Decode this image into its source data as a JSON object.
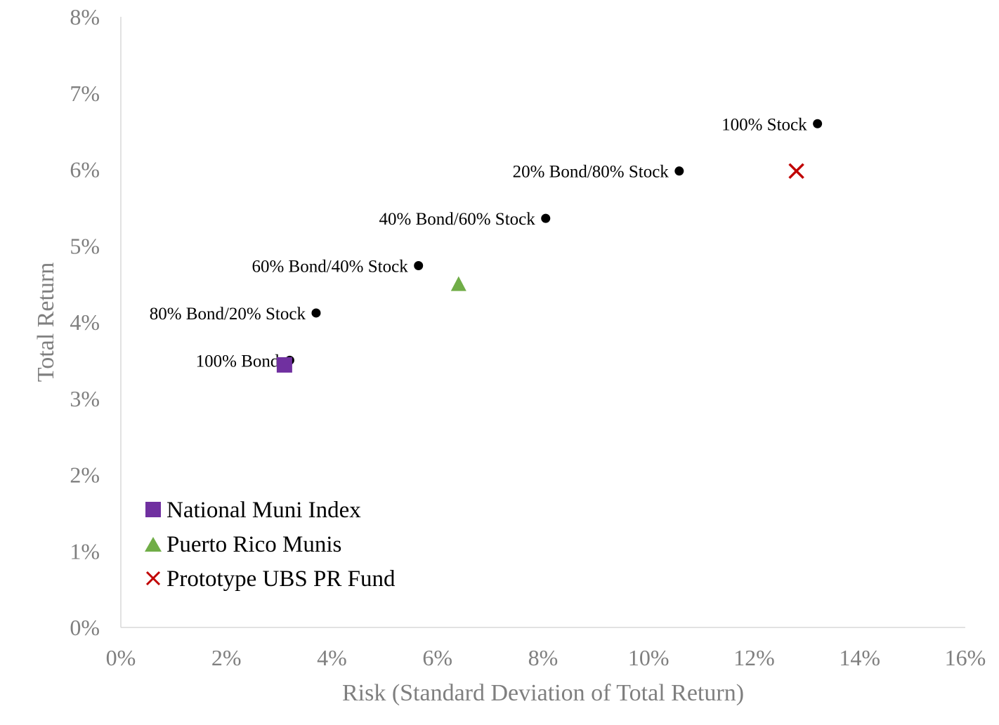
{
  "chart_data": {
    "type": "scatter",
    "xlabel": "Risk (Standard Deviation of Total Return)",
    "ylabel": "Total Return",
    "xlim": [
      0,
      16
    ],
    "ylim": [
      0,
      8
    ],
    "x_ticks": [
      "0%",
      "2%",
      "4%",
      "6%",
      "8%",
      "10%",
      "12%",
      "14%",
      "16%"
    ],
    "y_ticks": [
      "0%",
      "1%",
      "2%",
      "3%",
      "4%",
      "5%",
      "6%",
      "7%",
      "8%"
    ],
    "x_tick_values": [
      0,
      2,
      4,
      6,
      8,
      10,
      12,
      14,
      16
    ],
    "y_tick_values": [
      0,
      1,
      2,
      3,
      4,
      5,
      6,
      7,
      8
    ],
    "grid": false,
    "legend_position": "bottom-left",
    "portfolio_points": [
      {
        "label": "100% Bond",
        "x": 3.2,
        "y": 3.5
      },
      {
        "label": "80% Bond/20% Stock",
        "x": 3.7,
        "y": 4.12
      },
      {
        "label": "60% Bond/40% Stock",
        "x": 5.64,
        "y": 4.74
      },
      {
        "label": "40% Bond/60% Stock",
        "x": 8.05,
        "y": 5.36
      },
      {
        "label": "20% Bond/80% Stock",
        "x": 10.58,
        "y": 5.98
      },
      {
        "label": "100% Stock",
        "x": 13.2,
        "y": 6.6
      }
    ],
    "series": [
      {
        "name": "National Muni Index",
        "marker": "square",
        "color": "#7030a0",
        "x": [
          3.1
        ],
        "y": [
          3.44
        ]
      },
      {
        "name": "Puerto Rico Munis",
        "marker": "triangle",
        "color": "#70ad47",
        "x": [
          6.4
        ],
        "y": [
          4.5
        ]
      },
      {
        "name": "Prototype UBS PR Fund",
        "marker": "x",
        "color": "#c00000",
        "x": [
          12.8
        ],
        "y": [
          5.98
        ]
      }
    ]
  }
}
